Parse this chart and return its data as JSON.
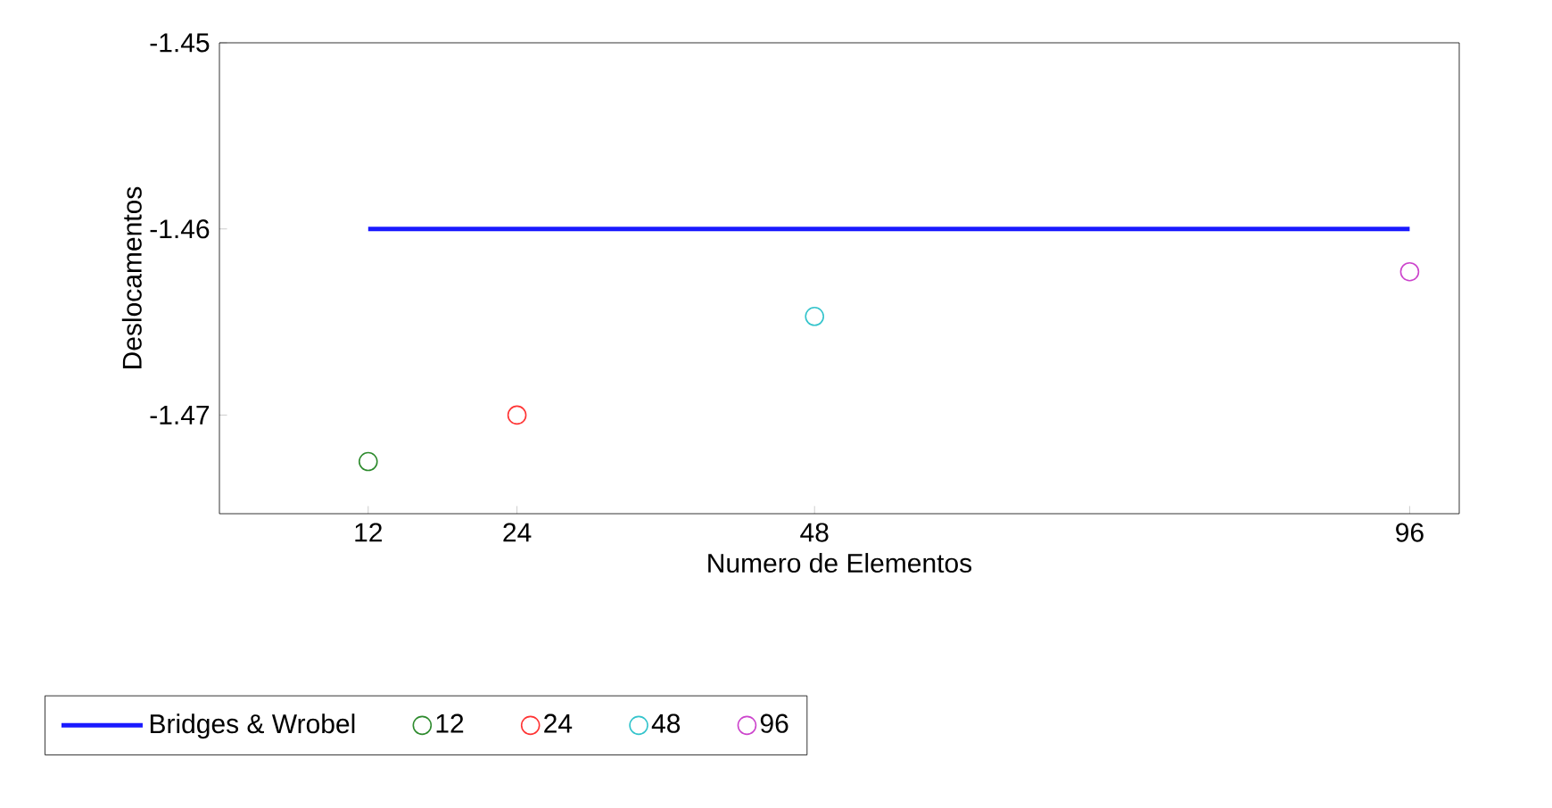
{
  "chart_data": {
    "type": "scatter",
    "xlabel": "Numero de Elementos",
    "ylabel": "Deslocamentos",
    "xlim": [
      0,
      100
    ],
    "ylim": [
      -1.4753,
      -1.45
    ],
    "xticks": [
      12,
      24,
      48,
      96
    ],
    "yticks": [
      -1.47,
      -1.46,
      -1.45
    ],
    "legend": "bottom",
    "marker": "circle",
    "series": [
      {
        "name": "Bridges & Wrobel",
        "type": "line",
        "marker": "none",
        "color": "#1a1aff",
        "x": [
          12,
          96
        ],
        "values": [
          -1.46,
          -1.46
        ]
      },
      {
        "name": "12",
        "color": "#2e8b2e",
        "x": [
          12
        ],
        "values": [
          -1.4725
        ]
      },
      {
        "name": "24",
        "color": "#ff3333",
        "x": [
          24
        ],
        "values": [
          -1.47
        ]
      },
      {
        "name": "48",
        "color": "#33c4cc",
        "x": [
          48
        ],
        "values": [
          -1.4647
        ]
      },
      {
        "name": "96",
        "color": "#cc44cc",
        "x": [
          96
        ],
        "values": [
          -1.4623
        ]
      }
    ]
  }
}
